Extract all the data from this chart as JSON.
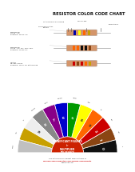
{
  "title": "RESISTOR COLOR CODE CHART",
  "bg_color": "#ffffff",
  "fan_data": [
    {
      "color": "#111111",
      "sig": "0",
      "tol": "",
      "mult": "1",
      "outer": "0"
    },
    {
      "color": "#8B4513",
      "sig": "1",
      "tol": "1%",
      "mult": "10",
      "outer": "1"
    },
    {
      "color": "#CC0000",
      "sig": "2",
      "tol": "2%",
      "mult": "100",
      "outer": "2"
    },
    {
      "color": "#FF6600",
      "sig": "3",
      "tol": "",
      "mult": "1k",
      "outer": "3"
    },
    {
      "color": "#FFFF00",
      "sig": "4",
      "tol": "",
      "mult": "10k",
      "outer": "4"
    },
    {
      "color": "#009900",
      "sig": "5",
      "tol": "0.5%",
      "mult": "100k",
      "outer": "5"
    },
    {
      "color": "#0000CC",
      "sig": "6",
      "tol": "0.25%",
      "mult": "1M",
      "outer": "6"
    },
    {
      "color": "#880088",
      "sig": "7",
      "tol": "0.1%",
      "mult": "10M",
      "outer": "7"
    },
    {
      "color": "#888888",
      "sig": "8",
      "tol": "0.05%",
      "mult": "",
      "outer": "8"
    },
    {
      "color": "#eeeeee",
      "sig": "9",
      "tol": "",
      "mult": "",
      "outer": "9"
    },
    {
      "color": "#C8A000",
      "sig": "",
      "tol": "5%",
      "mult": "0.1",
      "outer": ""
    },
    {
      "color": "#C0C0C0",
      "sig": "",
      "tol": "10%",
      "mult": "0.01",
      "outer": ""
    }
  ],
  "resistors": [
    {
      "bands": [
        "#0000AA",
        "#FFFF00",
        "#FF6600",
        "#C8A000"
      ],
      "label": "Commercial\nStand - 1%\nExample: 390 Ω, 1%"
    },
    {
      "bands": [
        "#FF6600",
        "#FF6600",
        "#111111",
        "#111111",
        "#8B4513"
      ],
      "label": "Commercial\nStand - 2%, 5%, 10%, 20%\nExample: 20 kΩ, 5%"
    },
    {
      "bands": [
        "#CC0000",
        "#8B4513",
        "#CC0000",
        "#FF6600",
        "#C8A000"
      ],
      "label": "Military\nMIL-PRF-39008\nExample: 100 k, 2% Established"
    }
  ],
  "band_labels": [
    "1st SIGNIFICANT\nFIGURE",
    "2nd SIGNIFICANT\nFIGURE",
    "MULTIPLIER",
    "TOLERANCE"
  ],
  "footer_line1": "One of the World's Largest Manufacturers of",
  "footer_line2": "Willcom Semiconductors and Passive Components",
  "footer_url": "www.vishay.com",
  "center_labels": [
    "SIGNIFICANT FIGURES",
    "for",
    "MULTIPLIER",
    "TOLERANCE"
  ]
}
